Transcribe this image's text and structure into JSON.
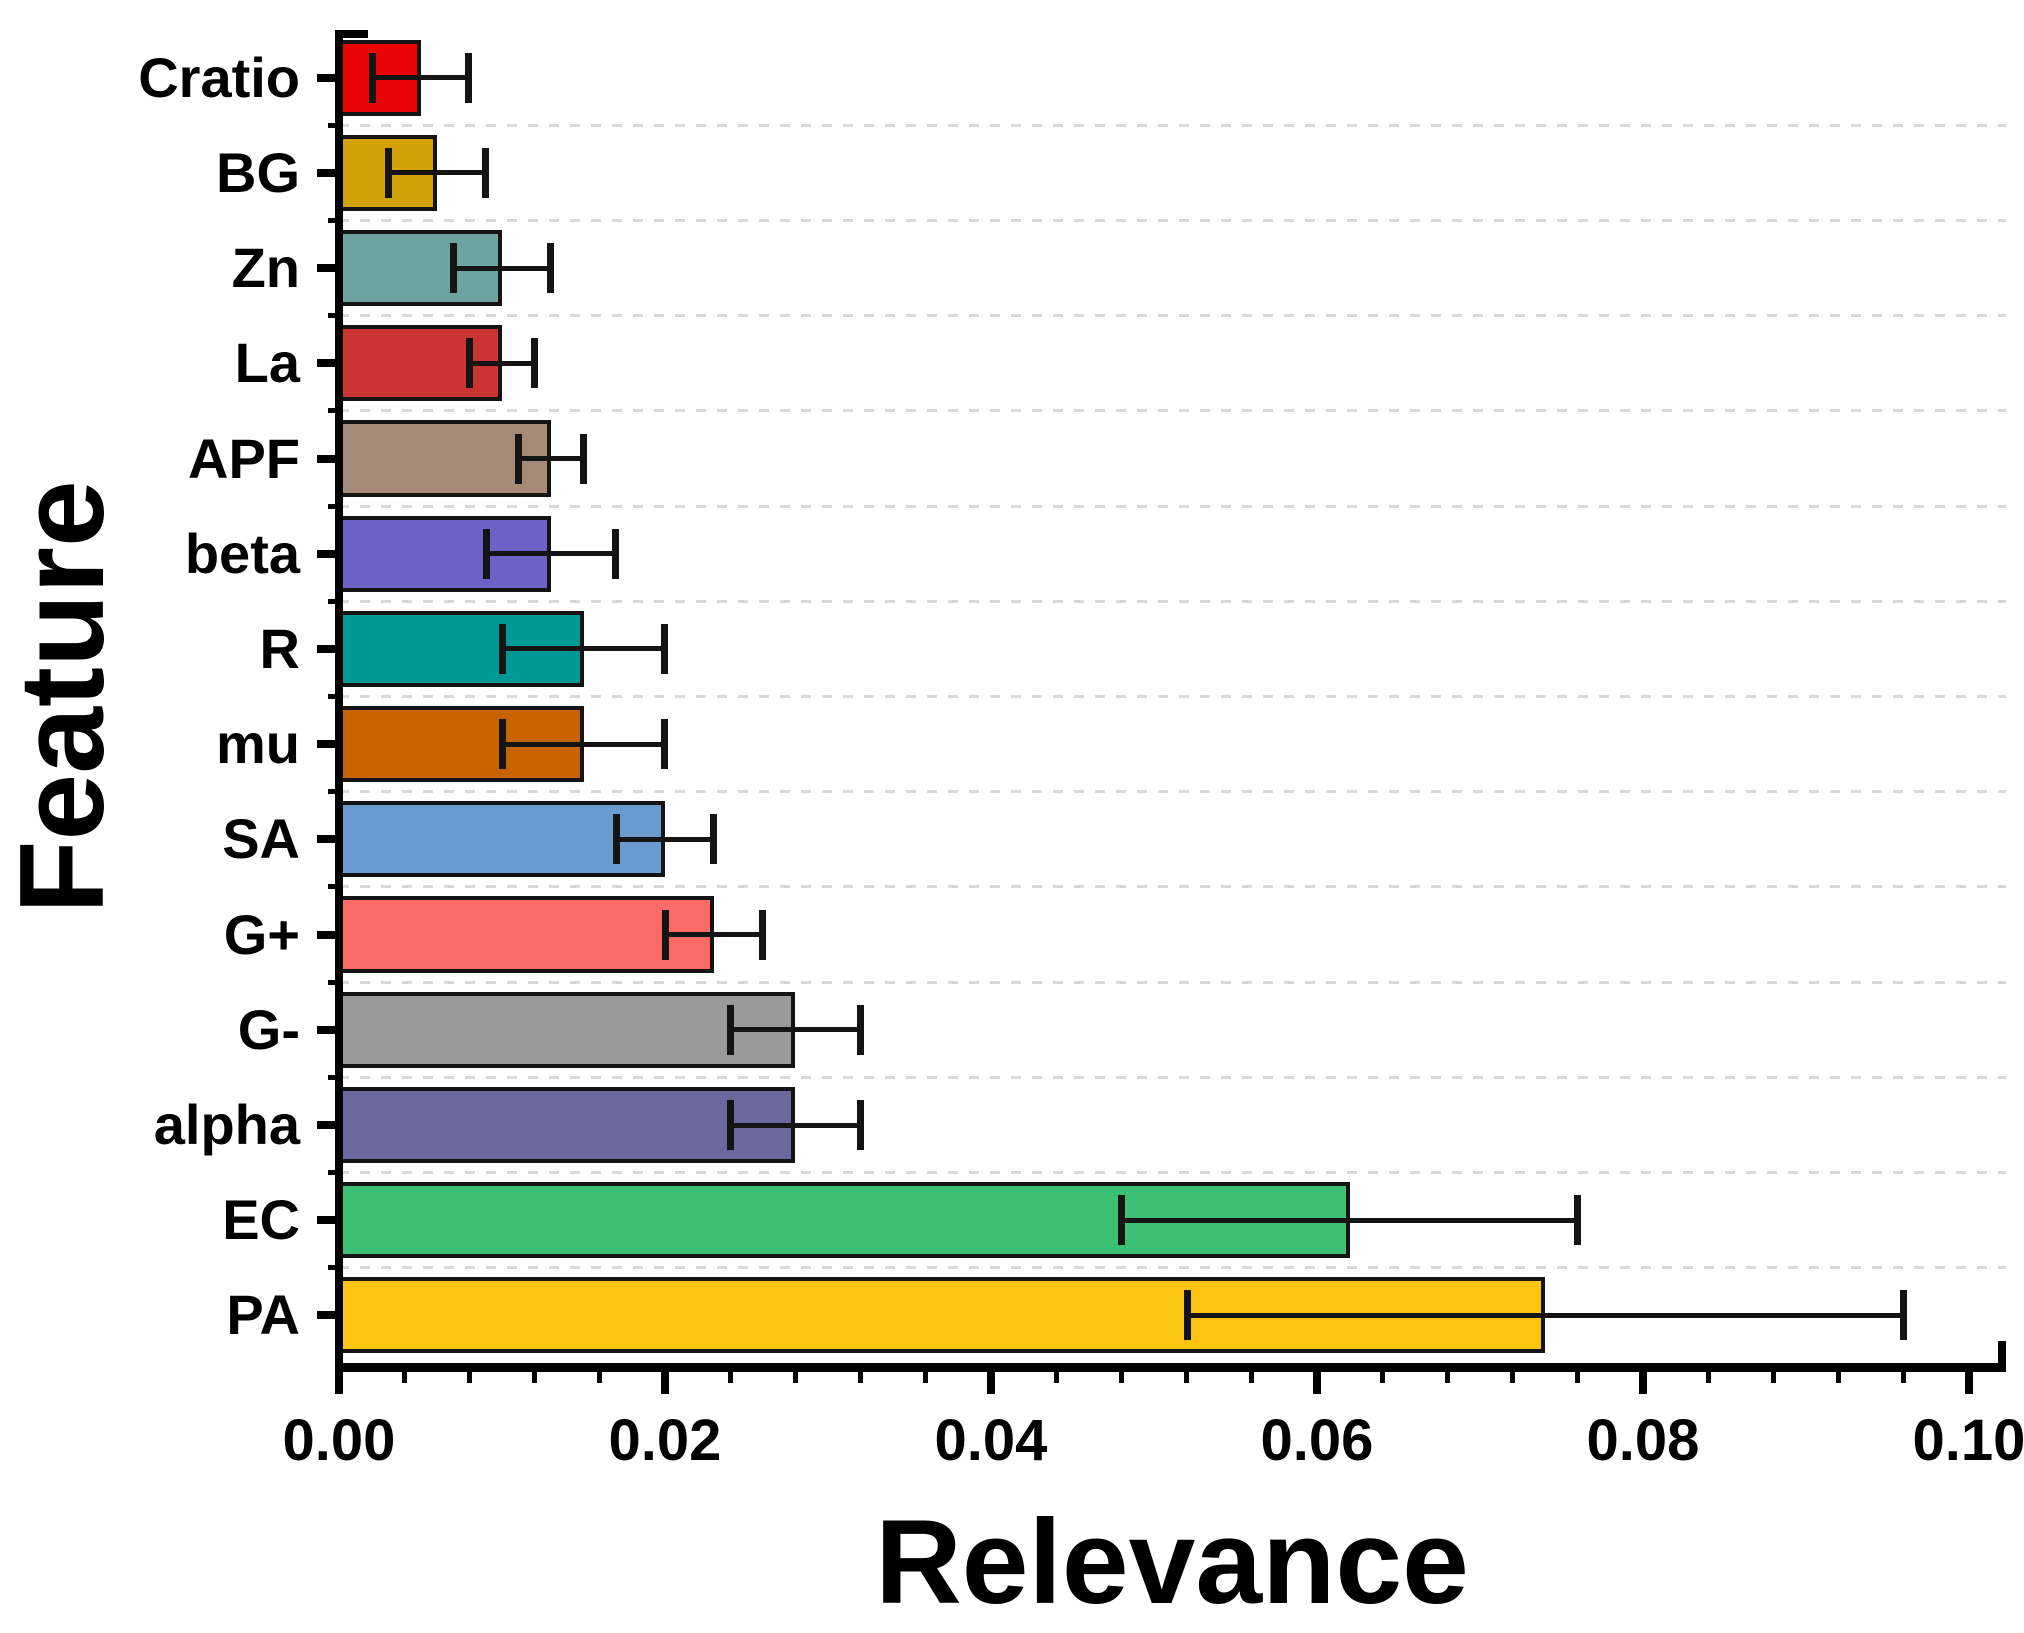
{
  "chart_data": {
    "type": "bar",
    "orientation": "horizontal",
    "xlabel": "Relevance",
    "ylabel": "Feature",
    "categories": [
      "Cratio",
      "BG",
      "Zn",
      "La",
      "APF",
      "beta",
      "R",
      "mu",
      "SA",
      "G+",
      "G-",
      "alpha",
      "EC",
      "PA"
    ],
    "values": [
      0.005,
      0.006,
      0.01,
      0.01,
      0.013,
      0.013,
      0.015,
      0.015,
      0.02,
      0.023,
      0.028,
      0.028,
      0.062,
      0.074
    ],
    "errors_minus": [
      0.003,
      0.003,
      0.003,
      0.002,
      0.002,
      0.004,
      0.005,
      0.005,
      0.003,
      0.003,
      0.004,
      0.004,
      0.014,
      0.022
    ],
    "errors_plus": [
      0.003,
      0.003,
      0.003,
      0.002,
      0.002,
      0.004,
      0.005,
      0.005,
      0.003,
      0.003,
      0.004,
      0.004,
      0.014,
      0.022
    ],
    "bar_colors": [
      "#ec0305",
      "#d2a106",
      "#6da3a1",
      "#cc3333",
      "#a58a78",
      "#6f62c6",
      "#009a96",
      "#c86400",
      "#6a9bd1",
      "#fc6a68",
      "#999999",
      "#6b689d",
      "#3bbf72",
      "#fcc411"
    ],
    "bar_border_color": "#141414",
    "error_bar_color": "#141414",
    "grid_color": "#d9d9d9",
    "axis_color": "#000000",
    "xlim": [
      0.0,
      0.1022
    ],
    "x_ticks": [
      0.0,
      0.02,
      0.04,
      0.06,
      0.08,
      0.1
    ],
    "x_tick_labels": [
      "0.00",
      "0.02",
      "0.04",
      "0.06",
      "0.08",
      "0.10"
    ],
    "x_minor_tick_step": 0.004,
    "grid": "dashed horizontal lines at category boundaries",
    "legend": "none"
  }
}
